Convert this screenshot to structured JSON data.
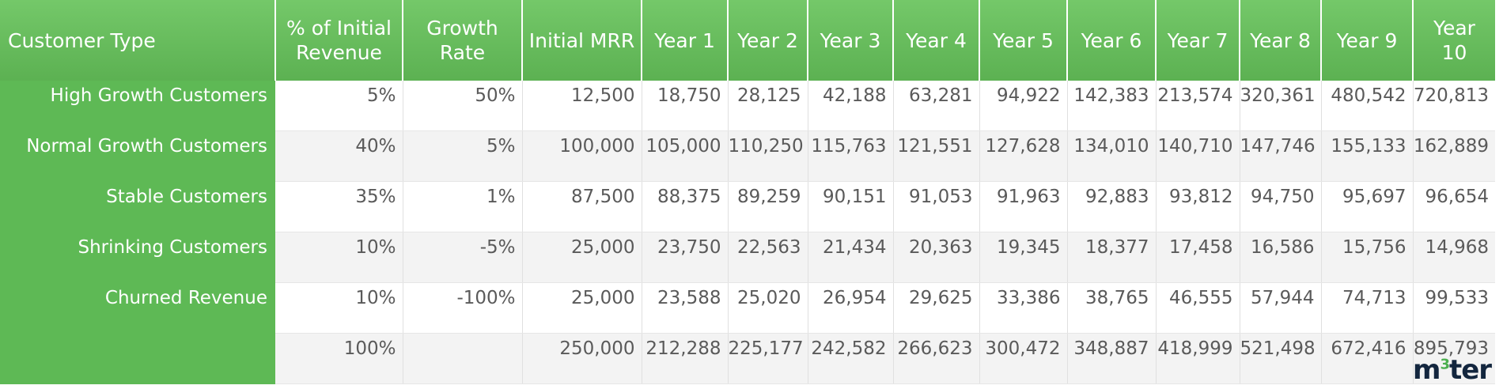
{
  "table": {
    "headers": [
      "Customer Type",
      "% of Initial Revenue",
      "Growth Rate",
      "Initial MRR",
      "Year 1",
      "Year 2",
      "Year 3",
      "Year 4",
      "Year 5",
      "Year 6",
      "Year 7",
      "Year 8",
      "Year 9",
      "Year 10"
    ],
    "rows": [
      {
        "type": "High Growth Customers",
        "cells": [
          "5%",
          "50%",
          "12,500",
          "18,750",
          "28,125",
          "42,188",
          "63,281",
          "94,922",
          "142,383",
          "213,574",
          "320,361",
          "480,542",
          "720,813"
        ]
      },
      {
        "type": "Normal Growth Customers",
        "cells": [
          "40%",
          "5%",
          "100,000",
          "105,000",
          "110,250",
          "115,763",
          "121,551",
          "127,628",
          "134,010",
          "140,710",
          "147,746",
          "155,133",
          "162,889"
        ]
      },
      {
        "type": "Stable Customers",
        "cells": [
          "35%",
          "1%",
          "87,500",
          "88,375",
          "89,259",
          "90,151",
          "91,053",
          "91,963",
          "92,883",
          "93,812",
          "94,750",
          "95,697",
          "96,654"
        ]
      },
      {
        "type": "Shrinking Customers",
        "cells": [
          "10%",
          "-5%",
          "25,000",
          "23,750",
          "22,563",
          "21,434",
          "20,363",
          "19,345",
          "18,377",
          "17,458",
          "16,586",
          "15,756",
          "14,968"
        ]
      },
      {
        "type": "Churned Revenue",
        "cells": [
          "10%",
          "-100%",
          "25,000",
          "23,588",
          "25,020",
          "26,954",
          "29,625",
          "33,386",
          "38,765",
          "46,555",
          "57,944",
          "74,713",
          "99,533"
        ]
      },
      {
        "type": "",
        "cells": [
          "100%",
          "",
          "250,000",
          "212,288",
          "225,177",
          "242,582",
          "266,623",
          "300,472",
          "348,887",
          "418,999",
          "521,498",
          "672,416",
          "895,793"
        ]
      }
    ]
  },
  "logo": {
    "text_left": "m",
    "text_sup": "3",
    "text_right": "ter"
  }
}
